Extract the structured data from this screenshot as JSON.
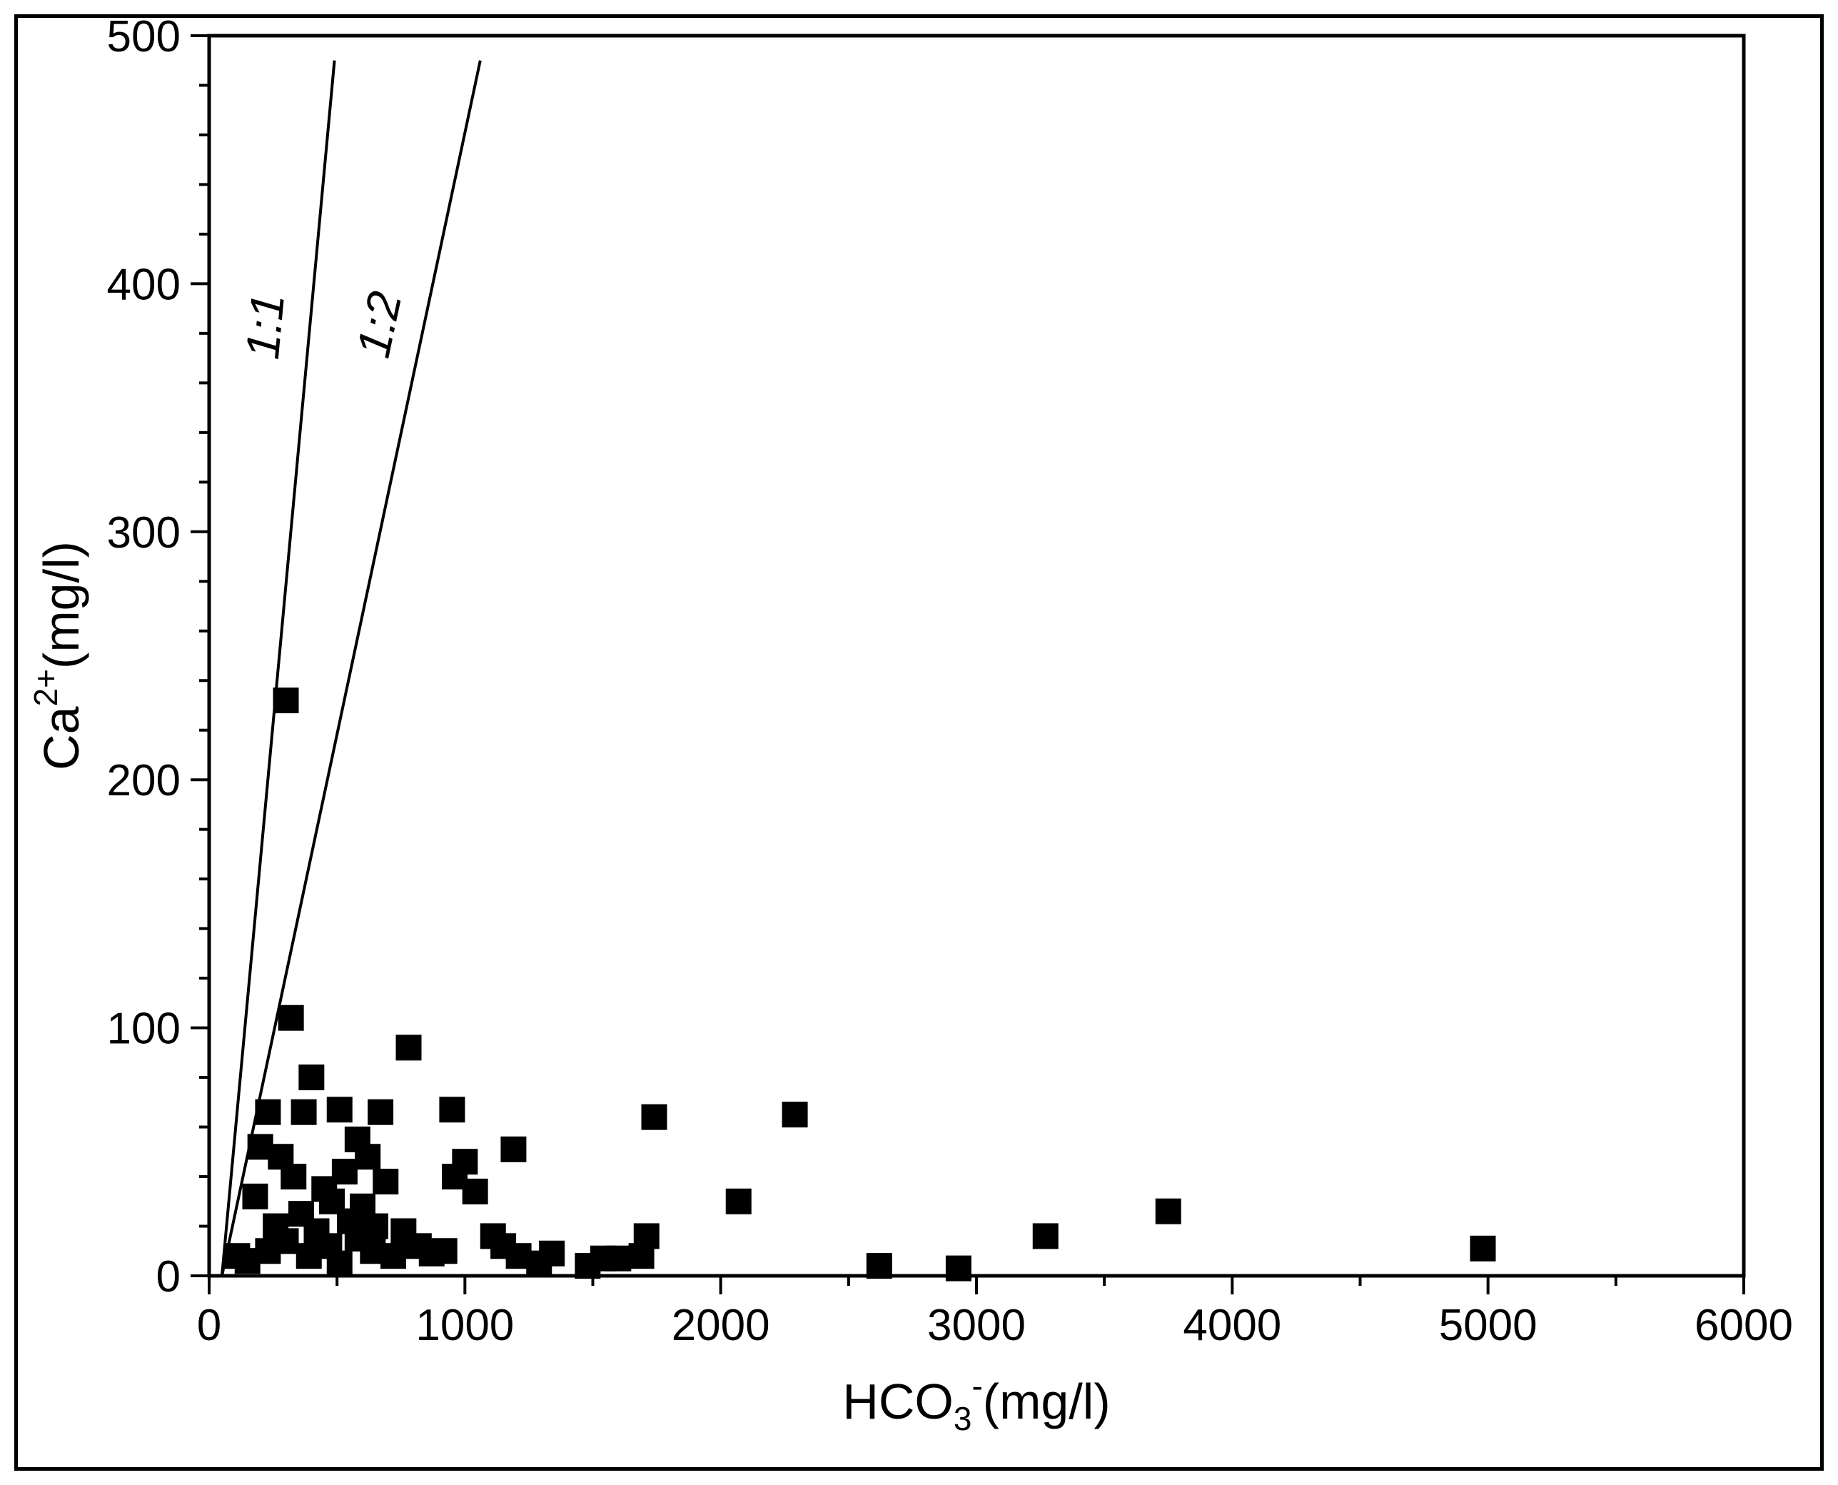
{
  "chart_data": {
    "type": "scatter",
    "title": "",
    "xlabel": {
      "base": "HCO",
      "sub": "3",
      "sup": "-",
      "unit": "(mg/l)"
    },
    "ylabel": {
      "base": "Ca",
      "sup": "2+",
      "unit": "(mg/l)"
    },
    "xlim": [
      0,
      6000
    ],
    "ylim": [
      0,
      500
    ],
    "x_ticks": [
      0,
      1000,
      2000,
      3000,
      4000,
      5000,
      6000
    ],
    "x_tick_labels": [
      "0",
      "1000",
      "2000",
      "3000",
      "4000",
      "5000",
      "6000"
    ],
    "y_ticks": [
      0,
      100,
      200,
      300,
      400,
      500
    ],
    "y_tick_labels": [
      "0",
      "100",
      "200",
      "300",
      "400",
      "500"
    ],
    "grid": false,
    "marker": "filled-square",
    "marker_color": "#000000",
    "reference_lines": [
      {
        "label": "1:1",
        "points": [
          [
            50,
            0
          ],
          [
            490,
            490
          ]
        ]
      },
      {
        "label": "1:2",
        "points": [
          [
            50,
            0
          ],
          [
            1060,
            490
          ]
        ]
      }
    ],
    "points": [
      [
        300,
        232
      ],
      [
        320,
        104
      ],
      [
        780,
        92
      ],
      [
        400,
        80
      ],
      [
        230,
        66
      ],
      [
        370,
        66
      ],
      [
        510,
        67
      ],
      [
        670,
        66
      ],
      [
        950,
        67
      ],
      [
        1740,
        64
      ],
      [
        2290,
        65
      ],
      [
        200,
        52
      ],
      [
        280,
        48
      ],
      [
        580,
        55
      ],
      [
        620,
        48
      ],
      [
        1190,
        51
      ],
      [
        180,
        32
      ],
      [
        330,
        40
      ],
      [
        450,
        35
      ],
      [
        530,
        42
      ],
      [
        690,
        38
      ],
      [
        960,
        40
      ],
      [
        1000,
        46
      ],
      [
        1040,
        34
      ],
      [
        260,
        20
      ],
      [
        360,
        25
      ],
      [
        420,
        18
      ],
      [
        480,
        30
      ],
      [
        550,
        22
      ],
      [
        600,
        28
      ],
      [
        650,
        20
      ],
      [
        2070,
        30
      ],
      [
        3750,
        26
      ],
      [
        230,
        10
      ],
      [
        300,
        14
      ],
      [
        390,
        8
      ],
      [
        470,
        12
      ],
      [
        510,
        5
      ],
      [
        580,
        15
      ],
      [
        640,
        10
      ],
      [
        720,
        8
      ],
      [
        760,
        18
      ],
      [
        820,
        12
      ],
      [
        870,
        9
      ],
      [
        920,
        10
      ],
      [
        110,
        8
      ],
      [
        150,
        6
      ],
      [
        1110,
        16
      ],
      [
        1150,
        12
      ],
      [
        1210,
        8
      ],
      [
        1290,
        5
      ],
      [
        1340,
        9
      ],
      [
        1480,
        4
      ],
      [
        1540,
        7
      ],
      [
        1600,
        7
      ],
      [
        1690,
        8
      ],
      [
        1710,
        16
      ],
      [
        2620,
        4
      ],
      [
        2930,
        3
      ],
      [
        3270,
        16
      ],
      [
        4980,
        11
      ]
    ]
  }
}
